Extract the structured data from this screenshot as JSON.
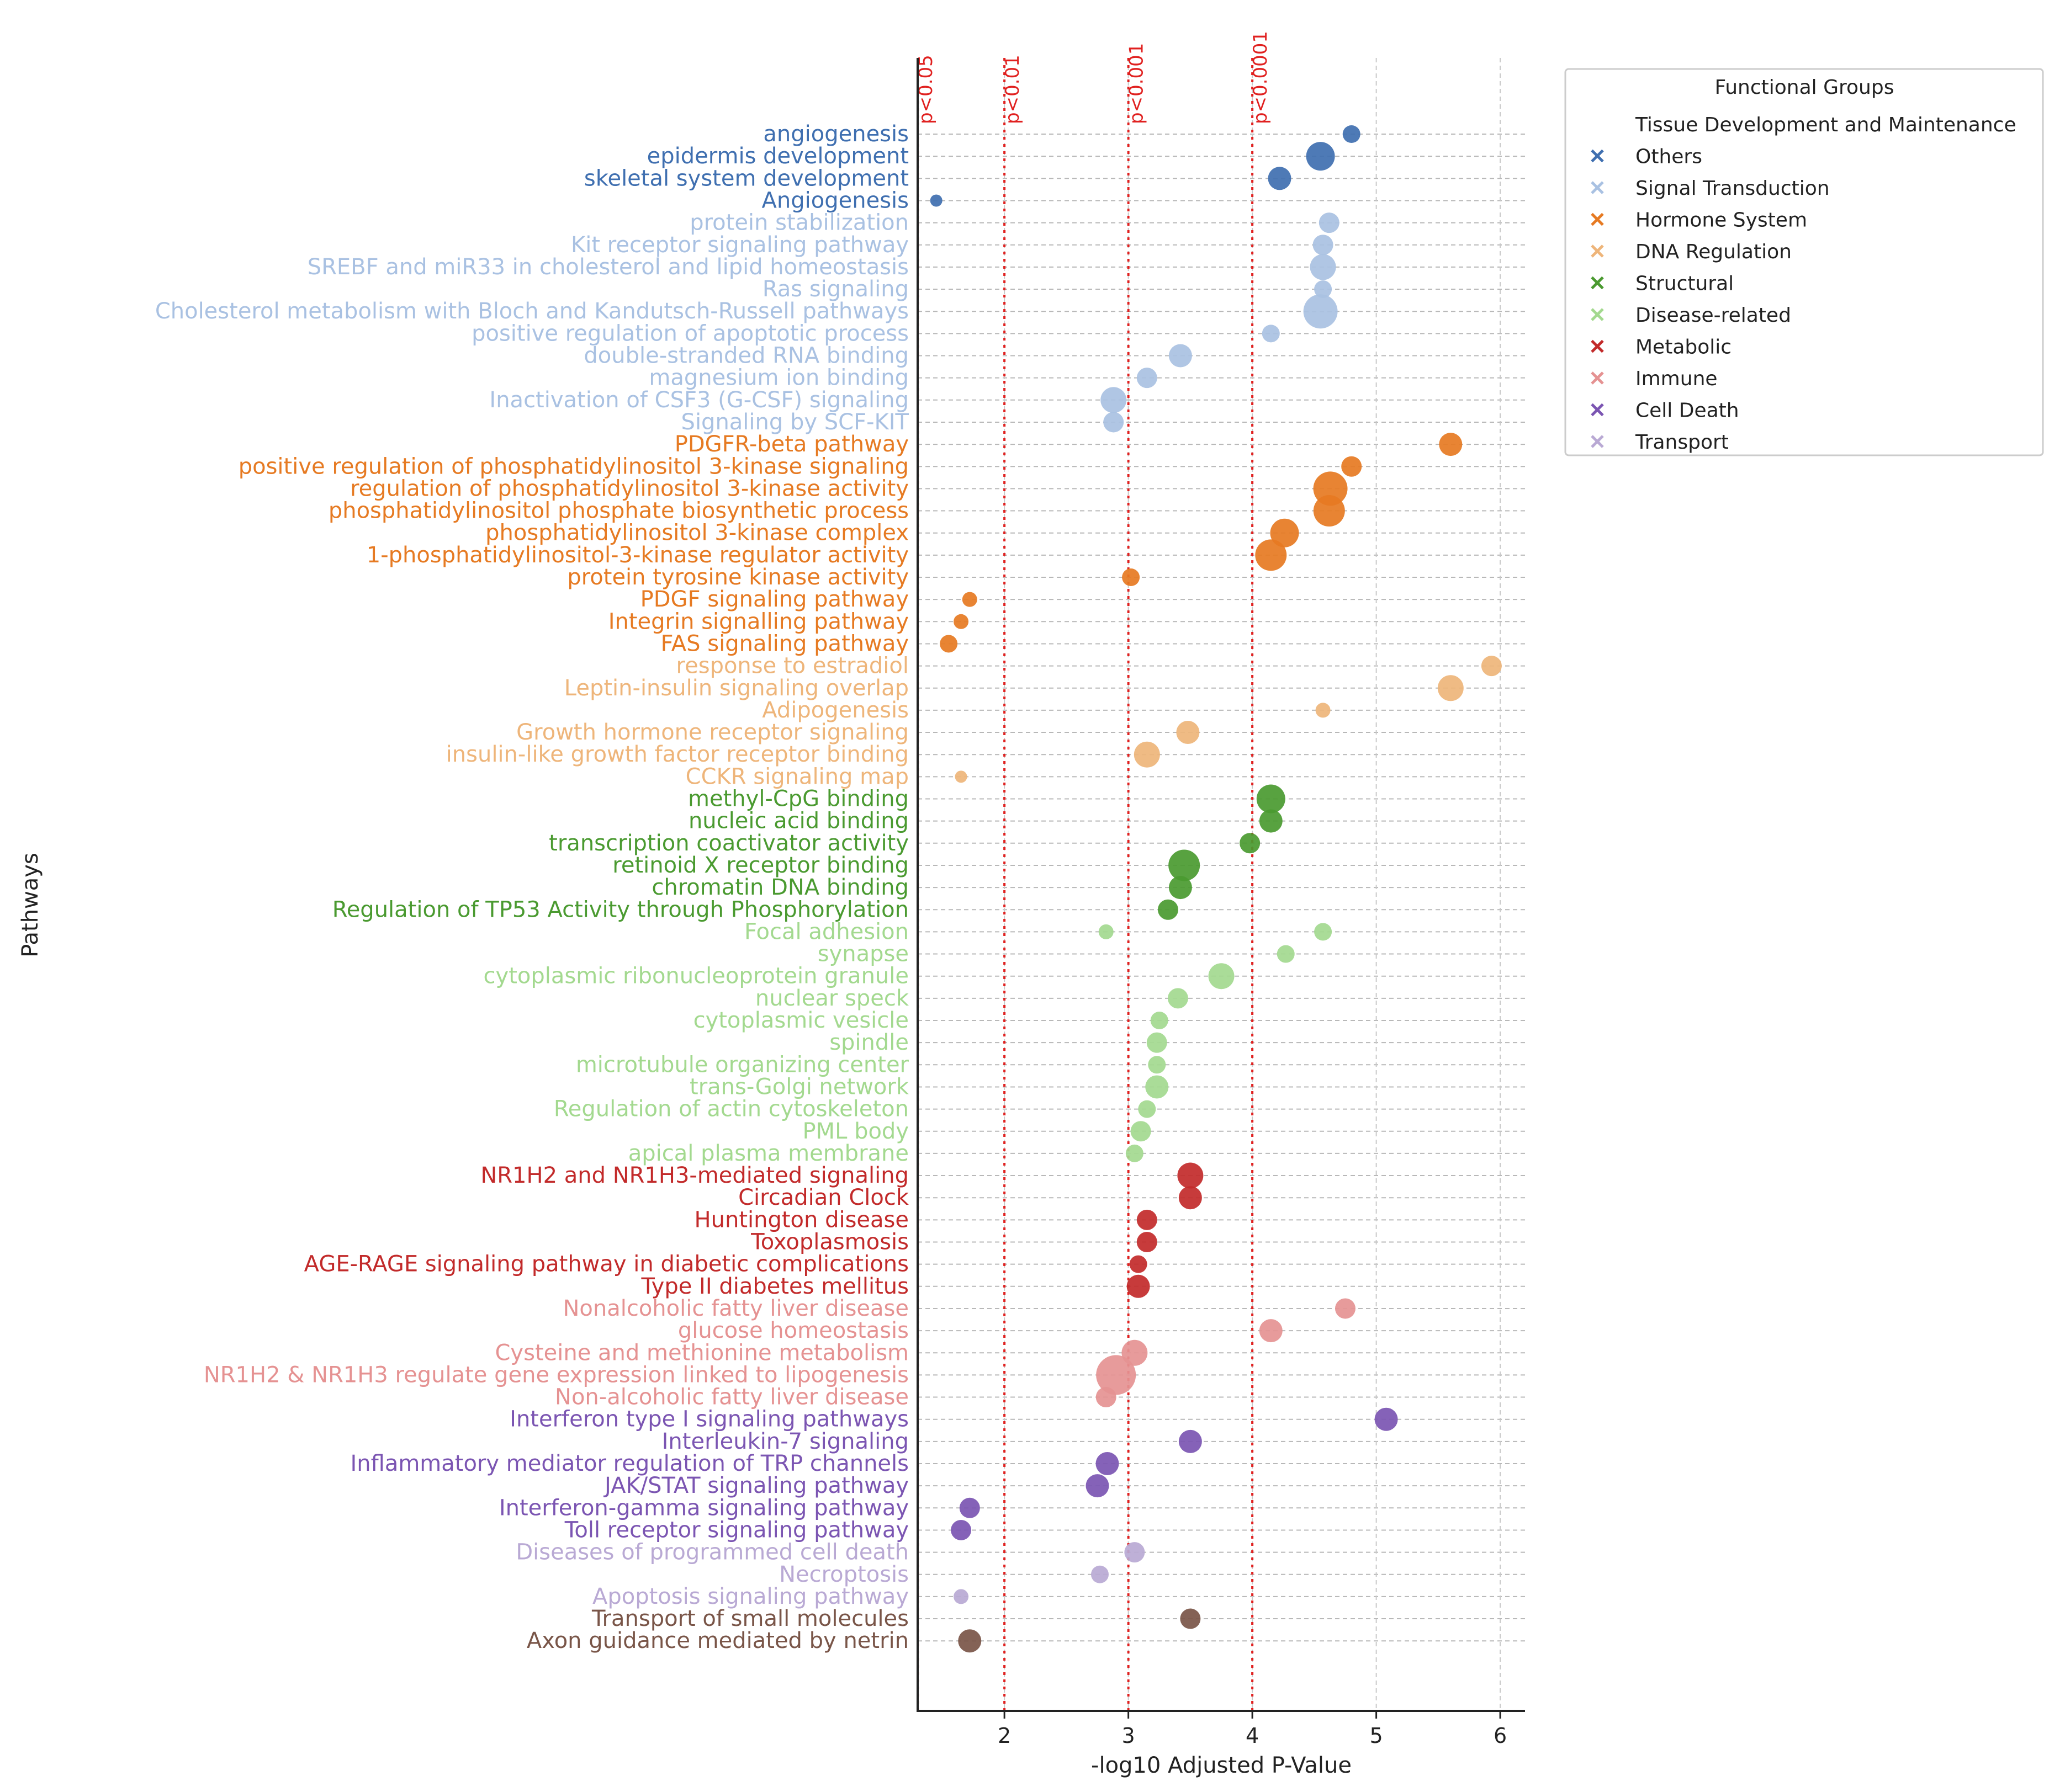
{
  "chart_data": {
    "type": "scatter",
    "xlabel": "-log10 Adjusted P-Value",
    "ylabel": "Pathways",
    "xlim": [
      1.3,
      6.2
    ],
    "xticks": [
      2,
      3,
      4,
      5,
      6
    ],
    "grid": true,
    "legend_position": "top-right",
    "thresholds": [
      {
        "x": 1.301,
        "label": "p<0.05"
      },
      {
        "x": 2.0,
        "label": "p<0.01"
      },
      {
        "x": 3.0,
        "label": "p<0.001"
      },
      {
        "x": 4.0,
        "label": "p<0.0001"
      }
    ],
    "legend": {
      "title": "Functional Groups",
      "entries": [
        {
          "name": "Tissue Development and Maintenance",
          "color": null
        },
        {
          "name": "Others",
          "color": "#3f6fb0"
        },
        {
          "name": "Signal Transduction",
          "color": "#a9c1e2"
        },
        {
          "name": "Hormone System",
          "color": "#e67a22"
        },
        {
          "name": "DNA Regulation",
          "color": "#eeb57a"
        },
        {
          "name": "Structural",
          "color": "#4a9a30"
        },
        {
          "name": "Disease-related",
          "color": "#a3d98f"
        },
        {
          "name": "Metabolic",
          "color": "#c22a2a"
        },
        {
          "name": "Immune",
          "color": "#e59292"
        },
        {
          "name": "Cell Death",
          "color": "#7b55b2"
        },
        {
          "name": "Transport",
          "color": "#b9a9d4"
        }
      ]
    },
    "points": [
      {
        "label": "angiogenesis",
        "x": 4.8,
        "size": 2,
        "color": "#3f6fb0"
      },
      {
        "label": "epidermis development",
        "x": 4.55,
        "size": 4,
        "color": "#3f6fb0"
      },
      {
        "label": "skeletal system development",
        "x": 4.22,
        "size": 3,
        "color": "#3f6fb0"
      },
      {
        "label": "Angiogenesis",
        "x": 1.45,
        "size": 1,
        "color": "#3f6fb0"
      },
      {
        "label": "protein stabilization",
        "x": 4.62,
        "size": 2.5,
        "color": "#a9c1e2"
      },
      {
        "label": "Kit receptor signaling pathway",
        "x": 4.57,
        "size": 2.5,
        "color": "#a9c1e2"
      },
      {
        "label": "SREBF and miR33 in cholesterol and lipid homeostasis",
        "x": 4.57,
        "size": 3.5,
        "color": "#a9c1e2"
      },
      {
        "label": "Ras signaling",
        "x": 4.57,
        "size": 2,
        "color": "#a9c1e2"
      },
      {
        "label": "Cholesterol metabolism with Bloch and Kandutsch-Russell pathways",
        "x": 4.55,
        "size": 5,
        "color": "#a9c1e2"
      },
      {
        "label": "positive regulation of apoptotic process",
        "x": 4.15,
        "size": 2,
        "color": "#a9c1e2"
      },
      {
        "label": "double-stranded RNA binding",
        "x": 3.42,
        "size": 3,
        "color": "#a9c1e2"
      },
      {
        "label": "magnesium ion binding",
        "x": 3.15,
        "size": 2.5,
        "color": "#a9c1e2"
      },
      {
        "label": "Inactivation of CSF3 (G-CSF) signaling",
        "x": 2.88,
        "size": 3.5,
        "color": "#a9c1e2"
      },
      {
        "label": "Signaling by SCF-KIT",
        "x": 2.88,
        "size": 2.5,
        "color": "#a9c1e2"
      },
      {
        "label": "PDGFR-beta pathway",
        "x": 5.6,
        "size": 3,
        "color": "#e67a22"
      },
      {
        "label": "positive regulation of phosphatidylinositol 3-kinase signaling",
        "x": 4.8,
        "size": 2.5,
        "color": "#e67a22"
      },
      {
        "label": "regulation of phosphatidylinositol 3-kinase activity",
        "x": 4.63,
        "size": 5,
        "color": "#e67a22"
      },
      {
        "label": "phosphatidylinositol phosphate biosynthetic process",
        "x": 4.62,
        "size": 4.5,
        "color": "#e67a22"
      },
      {
        "label": "phosphatidylinositol 3-kinase complex",
        "x": 4.26,
        "size": 4,
        "color": "#e67a22"
      },
      {
        "label": "1-phosphatidylinositol-3-kinase regulator activity",
        "x": 4.15,
        "size": 4.5,
        "color": "#e67a22"
      },
      {
        "label": "protein tyrosine kinase activity",
        "x": 3.02,
        "size": 2,
        "color": "#e67a22"
      },
      {
        "label": "PDGF signaling pathway",
        "x": 1.72,
        "size": 1.5,
        "color": "#e67a22"
      },
      {
        "label": "Integrin signalling pathway",
        "x": 1.65,
        "size": 1.5,
        "color": "#e67a22"
      },
      {
        "label": "FAS signaling pathway",
        "x": 1.55,
        "size": 2,
        "color": "#e67a22"
      },
      {
        "label": "response to estradiol",
        "x": 5.93,
        "size": 2.5,
        "color": "#eeb57a"
      },
      {
        "label": "Leptin-insulin signaling overlap",
        "x": 5.6,
        "size": 3.5,
        "color": "#eeb57a"
      },
      {
        "label": "Adipogenesis",
        "x": 4.57,
        "size": 1.5,
        "color": "#eeb57a"
      },
      {
        "label": "Growth hormone receptor signaling",
        "x": 3.48,
        "size": 3,
        "color": "#eeb57a"
      },
      {
        "label": "insulin-like growth factor receptor binding",
        "x": 3.15,
        "size": 3.5,
        "color": "#eeb57a"
      },
      {
        "label": "CCKR signaling map",
        "x": 1.65,
        "size": 1,
        "color": "#eeb57a"
      },
      {
        "label": "methyl-CpG binding",
        "x": 4.15,
        "size": 4,
        "color": "#4a9a30"
      },
      {
        "label": "nucleic acid binding",
        "x": 4.15,
        "size": 3,
        "color": "#4a9a30"
      },
      {
        "label": "transcription coactivator activity",
        "x": 3.98,
        "size": 2.5,
        "color": "#4a9a30"
      },
      {
        "label": "retinoid X receptor binding",
        "x": 3.45,
        "size": 4.5,
        "color": "#4a9a30"
      },
      {
        "label": "chromatin DNA binding",
        "x": 3.42,
        "size": 3,
        "color": "#4a9a30"
      },
      {
        "label": "Regulation of TP53 Activity through Phosphorylation",
        "x": 3.32,
        "size": 2.5,
        "color": "#4a9a30"
      },
      {
        "label": "Focal adhesion",
        "x": 4.57,
        "size": 2,
        "color": "#a3d98f"
      },
      {
        "label": "Focal adhesion",
        "x": 2.82,
        "size": 1.5,
        "color": "#a3d98f"
      },
      {
        "label": "synapse",
        "x": 4.27,
        "size": 2,
        "color": "#a3d98f"
      },
      {
        "label": "cytoplasmic ribonucleoprotein granule",
        "x": 3.75,
        "size": 3.5,
        "color": "#a3d98f"
      },
      {
        "label": "nuclear speck",
        "x": 3.4,
        "size": 2.5,
        "color": "#a3d98f"
      },
      {
        "label": "cytoplasmic vesicle",
        "x": 3.25,
        "size": 2,
        "color": "#a3d98f"
      },
      {
        "label": "spindle",
        "x": 3.23,
        "size": 2.5,
        "color": "#a3d98f"
      },
      {
        "label": "microtubule organizing center",
        "x": 3.23,
        "size": 2,
        "color": "#a3d98f"
      },
      {
        "label": "trans-Golgi network",
        "x": 3.23,
        "size": 3,
        "color": "#a3d98f"
      },
      {
        "label": "Regulation of actin cytoskeleton",
        "x": 3.15,
        "size": 2,
        "color": "#a3d98f"
      },
      {
        "label": "PML body",
        "x": 3.1,
        "size": 2.5,
        "color": "#a3d98f"
      },
      {
        "label": "apical plasma membrane",
        "x": 3.05,
        "size": 2,
        "color": "#a3d98f"
      },
      {
        "label": "NR1H2 and NR1H3-mediated signaling",
        "x": 3.5,
        "size": 3.5,
        "color": "#c22a2a"
      },
      {
        "label": "Circadian Clock",
        "x": 3.5,
        "size": 3,
        "color": "#c22a2a"
      },
      {
        "label": "Huntington disease",
        "x": 3.15,
        "size": 2.5,
        "color": "#c22a2a"
      },
      {
        "label": "Toxoplasmosis",
        "x": 3.15,
        "size": 2.5,
        "color": "#c22a2a"
      },
      {
        "label": "AGE-RAGE signaling pathway in diabetic complications",
        "x": 3.08,
        "size": 2,
        "color": "#c22a2a"
      },
      {
        "label": "Type II diabetes mellitus",
        "x": 3.08,
        "size": 3,
        "color": "#c22a2a"
      },
      {
        "label": "Nonalcoholic fatty liver disease",
        "x": 4.75,
        "size": 2.5,
        "color": "#e59292"
      },
      {
        "label": "glucose homeostasis",
        "x": 4.15,
        "size": 3,
        "color": "#e59292"
      },
      {
        "label": "Cysteine and methionine metabolism",
        "x": 3.05,
        "size": 3.5,
        "color": "#e59292"
      },
      {
        "label": "NR1H2 & NR1H3 regulate gene expression linked to lipogenesis",
        "x": 2.9,
        "size": 6,
        "color": "#e59292"
      },
      {
        "label": "Non-alcoholic fatty liver disease",
        "x": 2.82,
        "size": 2.5,
        "color": "#e59292"
      },
      {
        "label": "Interferon type I signaling pathways",
        "x": 5.08,
        "size": 3,
        "color": "#7b55b2"
      },
      {
        "label": "Interleukin-7 signaling",
        "x": 3.5,
        "size": 3,
        "color": "#7b55b2"
      },
      {
        "label": "Inflammatory mediator regulation of TRP channels",
        "x": 2.83,
        "size": 3,
        "color": "#7b55b2"
      },
      {
        "label": "JAK/STAT signaling pathway",
        "x": 2.75,
        "size": 3,
        "color": "#7b55b2"
      },
      {
        "label": "Interferon-gamma signaling pathway",
        "x": 1.72,
        "size": 2.5,
        "color": "#7b55b2"
      },
      {
        "label": "Toll receptor signaling pathway",
        "x": 1.65,
        "size": 2.5,
        "color": "#7b55b2"
      },
      {
        "label": "Diseases of programmed cell death",
        "x": 3.05,
        "size": 2.5,
        "color": "#b9a9d4"
      },
      {
        "label": "Necroptosis",
        "x": 2.77,
        "size": 2,
        "color": "#b9a9d4"
      },
      {
        "label": "Apoptosis signaling pathway",
        "x": 1.65,
        "size": 1.5,
        "color": "#b9a9d4"
      },
      {
        "label": "Transport of small molecules",
        "x": 3.5,
        "size": 2.5,
        "color": "#795548"
      },
      {
        "label": "Axon guidance mediated by netrin",
        "x": 1.72,
        "size": 3,
        "color": "#795548"
      }
    ],
    "categories": [
      {
        "label": "angiogenesis",
        "color": "#3f6fb0"
      },
      {
        "label": "epidermis development",
        "color": "#3f6fb0"
      },
      {
        "label": "skeletal system development",
        "color": "#3f6fb0"
      },
      {
        "label": "Angiogenesis",
        "color": "#3f6fb0"
      },
      {
        "label": "protein stabilization",
        "color": "#a9c1e2"
      },
      {
        "label": "Kit receptor signaling pathway",
        "color": "#a9c1e2"
      },
      {
        "label": "SREBF and miR33 in cholesterol and lipid homeostasis",
        "color": "#a9c1e2"
      },
      {
        "label": "Ras signaling",
        "color": "#a9c1e2"
      },
      {
        "label": "Cholesterol metabolism with Bloch and Kandutsch-Russell pathways",
        "color": "#a9c1e2"
      },
      {
        "label": "positive regulation of apoptotic process",
        "color": "#a9c1e2"
      },
      {
        "label": "double-stranded RNA binding",
        "color": "#a9c1e2"
      },
      {
        "label": "magnesium ion binding",
        "color": "#a9c1e2"
      },
      {
        "label": "Inactivation of CSF3 (G-CSF) signaling",
        "color": "#a9c1e2"
      },
      {
        "label": "Signaling by SCF-KIT",
        "color": "#a9c1e2"
      },
      {
        "label": "PDGFR-beta pathway",
        "color": "#e67a22"
      },
      {
        "label": "positive regulation of phosphatidylinositol 3-kinase signaling",
        "color": "#e67a22"
      },
      {
        "label": "regulation of phosphatidylinositol 3-kinase activity",
        "color": "#e67a22"
      },
      {
        "label": "phosphatidylinositol phosphate biosynthetic process",
        "color": "#e67a22"
      },
      {
        "label": "phosphatidylinositol 3-kinase complex",
        "color": "#e67a22"
      },
      {
        "label": "1-phosphatidylinositol-3-kinase regulator activity",
        "color": "#e67a22"
      },
      {
        "label": "protein tyrosine kinase activity",
        "color": "#e67a22"
      },
      {
        "label": "PDGF signaling pathway",
        "color": "#e67a22"
      },
      {
        "label": "Integrin signalling pathway",
        "color": "#e67a22"
      },
      {
        "label": "FAS signaling pathway",
        "color": "#e67a22"
      },
      {
        "label": "response to estradiol",
        "color": "#eeb57a"
      },
      {
        "label": "Leptin-insulin signaling overlap",
        "color": "#eeb57a"
      },
      {
        "label": "Adipogenesis",
        "color": "#eeb57a"
      },
      {
        "label": "Growth hormone receptor signaling",
        "color": "#eeb57a"
      },
      {
        "label": "insulin-like growth factor receptor binding",
        "color": "#eeb57a"
      },
      {
        "label": "CCKR signaling map",
        "color": "#eeb57a"
      },
      {
        "label": "methyl-CpG binding",
        "color": "#4a9a30"
      },
      {
        "label": "nucleic acid binding",
        "color": "#4a9a30"
      },
      {
        "label": "transcription coactivator activity",
        "color": "#4a9a30"
      },
      {
        "label": "retinoid X receptor binding",
        "color": "#4a9a30"
      },
      {
        "label": "chromatin DNA binding",
        "color": "#4a9a30"
      },
      {
        "label": "Regulation of TP53 Activity through Phosphorylation",
        "color": "#4a9a30"
      },
      {
        "label": "Focal adhesion",
        "color": "#a3d98f"
      },
      {
        "label": "synapse",
        "color": "#a3d98f"
      },
      {
        "label": "cytoplasmic ribonucleoprotein granule",
        "color": "#a3d98f"
      },
      {
        "label": "nuclear speck",
        "color": "#a3d98f"
      },
      {
        "label": "cytoplasmic vesicle",
        "color": "#a3d98f"
      },
      {
        "label": "spindle",
        "color": "#a3d98f"
      },
      {
        "label": "microtubule organizing center",
        "color": "#a3d98f"
      },
      {
        "label": "trans-Golgi network",
        "color": "#a3d98f"
      },
      {
        "label": "Regulation of actin cytoskeleton",
        "color": "#a3d98f"
      },
      {
        "label": "PML body",
        "color": "#a3d98f"
      },
      {
        "label": "apical plasma membrane",
        "color": "#a3d98f"
      },
      {
        "label": "NR1H2 and NR1H3-mediated signaling",
        "color": "#c22a2a"
      },
      {
        "label": "Circadian Clock",
        "color": "#c22a2a"
      },
      {
        "label": "Huntington disease",
        "color": "#c22a2a"
      },
      {
        "label": "Toxoplasmosis",
        "color": "#c22a2a"
      },
      {
        "label": "AGE-RAGE signaling pathway in diabetic complications",
        "color": "#c22a2a"
      },
      {
        "label": "Type II diabetes mellitus",
        "color": "#c22a2a"
      },
      {
        "label": "Nonalcoholic fatty liver disease",
        "color": "#e59292"
      },
      {
        "label": "glucose homeostasis",
        "color": "#e59292"
      },
      {
        "label": "Cysteine and methionine metabolism",
        "color": "#e59292"
      },
      {
        "label": "NR1H2 & NR1H3 regulate gene expression linked to lipogenesis",
        "color": "#e59292"
      },
      {
        "label": "Non-alcoholic fatty liver disease",
        "color": "#e59292"
      },
      {
        "label": "Interferon type I signaling pathways",
        "color": "#7b55b2"
      },
      {
        "label": "Interleukin-7 signaling",
        "color": "#7b55b2"
      },
      {
        "label": "Inflammatory mediator regulation of TRP channels",
        "color": "#7b55b2"
      },
      {
        "label": "JAK/STAT signaling pathway",
        "color": "#7b55b2"
      },
      {
        "label": "Interferon-gamma signaling pathway",
        "color": "#7b55b2"
      },
      {
        "label": "Toll receptor signaling pathway",
        "color": "#7b55b2"
      },
      {
        "label": "Diseases of programmed cell death",
        "color": "#b9a9d4"
      },
      {
        "label": "Necroptosis",
        "color": "#b9a9d4"
      },
      {
        "label": "Apoptosis signaling pathway",
        "color": "#b9a9d4"
      },
      {
        "label": "Transport of small molecules",
        "color": "#795548"
      },
      {
        "label": "Axon guidance mediated by netrin",
        "color": "#795548"
      }
    ]
  }
}
